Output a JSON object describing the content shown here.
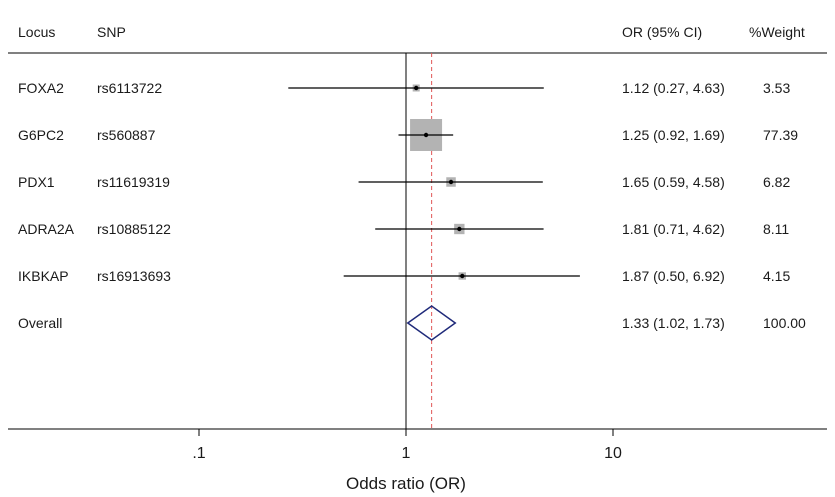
{
  "chart_data": {
    "type": "forest",
    "headers": {
      "locus": "Locus",
      "snp": "SNP",
      "or_ci": "OR (95% CI)",
      "weight": "%Weight"
    },
    "rows": [
      {
        "locus": "FOXA2",
        "snp": "rs6113722",
        "or": 1.12,
        "lo": 0.27,
        "hi": 4.63,
        "or_ci_text": "1.12 (0.27, 4.63)",
        "weight": 3.53,
        "weight_text": "3.53"
      },
      {
        "locus": "G6PC2",
        "snp": "rs560887",
        "or": 1.25,
        "lo": 0.92,
        "hi": 1.69,
        "or_ci_text": "1.25 (0.92, 1.69)",
        "weight": 77.39,
        "weight_text": "77.39"
      },
      {
        "locus": "PDX1",
        "snp": "rs11619319",
        "or": 1.65,
        "lo": 0.59,
        "hi": 4.58,
        "or_ci_text": "1.65 (0.59, 4.58)",
        "weight": 6.82,
        "weight_text": "6.82"
      },
      {
        "locus": "ADRA2A",
        "snp": "rs10885122",
        "or": 1.81,
        "lo": 0.71,
        "hi": 4.62,
        "or_ci_text": "1.81 (0.71, 4.62)",
        "weight": 8.11,
        "weight_text": "8.11"
      },
      {
        "locus": "IKBKAP",
        "snp": "rs16913693",
        "or": 1.87,
        "lo": 0.5,
        "hi": 6.92,
        "or_ci_text": "1.87 (0.50, 6.92)",
        "weight": 4.15,
        "weight_text": "4.15"
      }
    ],
    "overall": {
      "label": "Overall",
      "or": 1.33,
      "lo": 1.02,
      "hi": 1.73,
      "or_ci_text": "1.33 (1.02, 1.73)",
      "weight_text": "100.00"
    },
    "xaxis": {
      "scale": "log",
      "range": [
        0.043,
        100
      ],
      "ticks": [
        0.1,
        1,
        10
      ],
      "tick_labels": [
        ".1",
        "1",
        "10"
      ],
      "label": "Odds ratio (OR)"
    },
    "null_value": 1,
    "colors": {
      "text": "#1a1a1a",
      "ci_line": "#000000",
      "weight_box": "#b3b3b3",
      "diamond": "#1f2a7a",
      "overall_line": "#e05555"
    }
  }
}
